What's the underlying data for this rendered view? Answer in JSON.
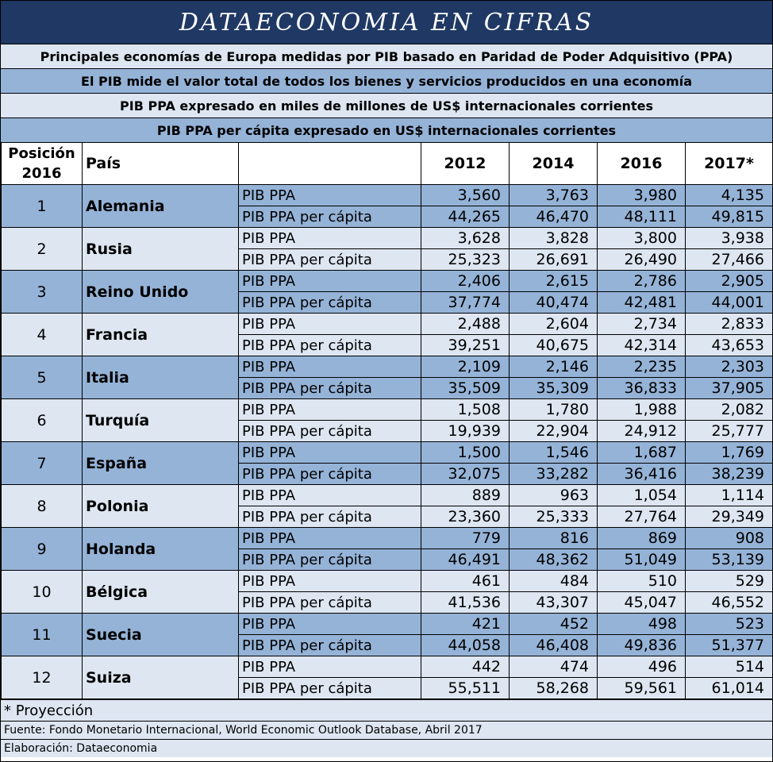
{
  "title": "DATAECONOMIA EN CIFRAS",
  "subtitles": [
    "Principales economías de Europa medidas por PIB basado en Paridad de Poder Adquisitivo (PPA)",
    "El PIB mide el valor total de todos los bienes y servicios producidos en una economía",
    "PIB PPA expresado en miles de millones de US$ internacionales corrientes",
    "PIB PPA per cápita expresado en US$ internacionales corrientes"
  ],
  "header": {
    "position_line1": "Posición",
    "position_line2": "2016",
    "country": "País",
    "years": [
      "2012",
      "2014",
      "2016",
      "2017*"
    ]
  },
  "metric_labels": {
    "pib": "PIB PPA",
    "percapita": "PIB PPA per cápita"
  },
  "rows": [
    {
      "rank": "1",
      "country": "Alemania",
      "pib": [
        "3,560",
        "3,763",
        "3,980",
        "4,135"
      ],
      "percapita": [
        "44,265",
        "46,470",
        "48,111",
        "49,815"
      ]
    },
    {
      "rank": "2",
      "country": "Rusia",
      "pib": [
        "3,628",
        "3,828",
        "3,800",
        "3,938"
      ],
      "percapita": [
        "25,323",
        "26,691",
        "26,490",
        "27,466"
      ]
    },
    {
      "rank": "3",
      "country": "Reino Unido",
      "pib": [
        "2,406",
        "2,615",
        "2,786",
        "2,905"
      ],
      "percapita": [
        "37,774",
        "40,474",
        "42,481",
        "44,001"
      ]
    },
    {
      "rank": "4",
      "country": "Francia",
      "pib": [
        "2,488",
        "2,604",
        "2,734",
        "2,833"
      ],
      "percapita": [
        "39,251",
        "40,675",
        "42,314",
        "43,653"
      ]
    },
    {
      "rank": "5",
      "country": "Italia",
      "pib": [
        "2,109",
        "2,146",
        "2,235",
        "2,303"
      ],
      "percapita": [
        "35,509",
        "35,309",
        "36,833",
        "37,905"
      ]
    },
    {
      "rank": "6",
      "country": "Turquía",
      "pib": [
        "1,508",
        "1,780",
        "1,988",
        "2,082"
      ],
      "percapita": [
        "19,939",
        "22,904",
        "24,912",
        "25,777"
      ]
    },
    {
      "rank": "7",
      "country": "España",
      "pib": [
        "1,500",
        "1,546",
        "1,687",
        "1,769"
      ],
      "percapita": [
        "32,075",
        "33,282",
        "36,416",
        "38,239"
      ]
    },
    {
      "rank": "8",
      "country": "Polonia",
      "pib": [
        "889",
        "963",
        "1,054",
        "1,114"
      ],
      "percapita": [
        "23,360",
        "25,333",
        "27,764",
        "29,349"
      ]
    },
    {
      "rank": "9",
      "country": "Holanda",
      "pib": [
        "779",
        "816",
        "869",
        "908"
      ],
      "percapita": [
        "46,491",
        "48,362",
        "51,049",
        "53,139"
      ]
    },
    {
      "rank": "10",
      "country": "Bélgica",
      "pib": [
        "461",
        "484",
        "510",
        "529"
      ],
      "percapita": [
        "41,536",
        "43,307",
        "45,047",
        "46,552"
      ]
    },
    {
      "rank": "11",
      "country": "Suecia",
      "pib": [
        "421",
        "452",
        "498",
        "523"
      ],
      "percapita": [
        "44,058",
        "46,408",
        "49,836",
        "51,377"
      ]
    },
    {
      "rank": "12",
      "country": "Suiza",
      "pib": [
        "442",
        "474",
        "496",
        "514"
      ],
      "percapita": [
        "55,511",
        "58,268",
        "59,561",
        "61,014"
      ]
    }
  ],
  "footer": {
    "note": "* Proyección",
    "source": "Fuente: Fondo Monetario Internacional, World Economic Outlook Database, Abril 2017",
    "credit": "Elaboración: Dataeconomia"
  },
  "colors": {
    "title_bg": "#1f3864",
    "band_dark": "#95b3d7",
    "band_light": "#dde6f1"
  }
}
